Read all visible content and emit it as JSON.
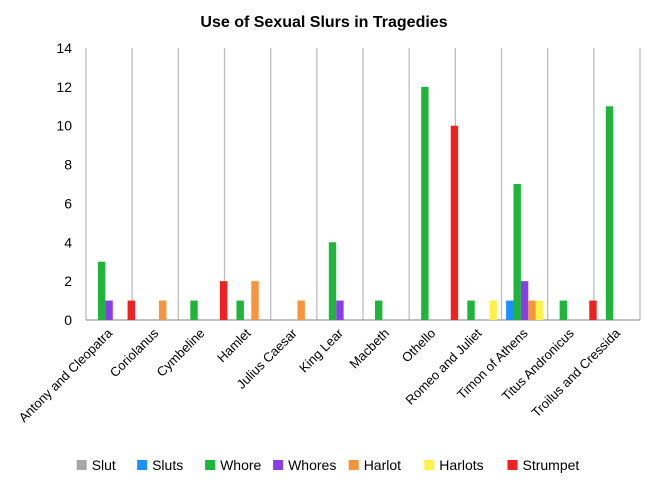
{
  "chart_data": {
    "type": "bar",
    "title": "Use of Sexual Slurs in Tragedies",
    "xlabel": "",
    "ylabel": "",
    "ylim": [
      0,
      14
    ],
    "yticks": [
      0,
      2,
      4,
      6,
      8,
      10,
      12,
      14
    ],
    "grid": "vertical",
    "legend_position": "bottom",
    "categories": [
      "Antony and Cleopatra",
      "Coriolanus",
      "Cymbeline",
      "Hamlet",
      "Julius Caesar",
      "King Lear",
      "Macbeth",
      "Othello",
      "Romeo and Juliet",
      "Timon of Athens",
      "Titus Andronicus",
      "Troilus and Cressida"
    ],
    "series": [
      {
        "name": "Slut",
        "color": "#a6a6a6",
        "values": [
          0,
          0,
          0,
          0,
          0,
          0,
          0,
          0,
          0,
          0,
          0,
          0
        ]
      },
      {
        "name": "Sluts",
        "color": "#1e90ff",
        "values": [
          0,
          0,
          0,
          0,
          0,
          0,
          0,
          0,
          0,
          1,
          0,
          0
        ]
      },
      {
        "name": "Whore",
        "color": "#1fb53a",
        "values": [
          3,
          0,
          1,
          1,
          0,
          4,
          1,
          12,
          1,
          7,
          1,
          11
        ]
      },
      {
        "name": "Whores",
        "color": "#8a3ee6",
        "values": [
          1,
          0,
          0,
          0,
          0,
          1,
          0,
          0,
          0,
          2,
          0,
          0
        ]
      },
      {
        "name": "Harlot",
        "color": "#f7943c",
        "values": [
          0,
          1,
          0,
          2,
          1,
          0,
          0,
          0,
          0,
          1,
          0,
          0
        ]
      },
      {
        "name": "Harlots",
        "color": "#fff04a",
        "values": [
          0,
          0,
          0,
          0,
          0,
          0,
          0,
          0,
          1,
          1,
          0,
          0
        ]
      },
      {
        "name": "Strumpet",
        "color": "#ee2222",
        "values": [
          1,
          0,
          2,
          0,
          0,
          0,
          0,
          10,
          0,
          0,
          1,
          0
        ]
      }
    ]
  }
}
